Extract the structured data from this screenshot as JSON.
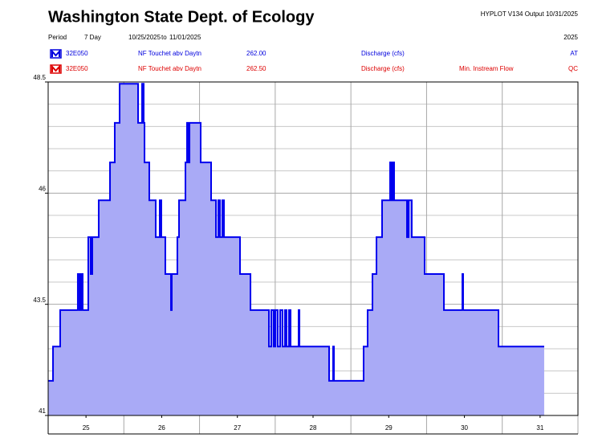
{
  "chart_data": {
    "type": "line",
    "title": "Washington State Dept. of Ecology",
    "program": "HYPLOT V134  Output 10/31/2025",
    "period_label": "Period",
    "period_value": "7 Day",
    "date_start": "10/25/2025",
    "date_sep": "to",
    "date_end": "11/01/2025",
    "year": "2025",
    "legend": [
      {
        "station": "32E050",
        "site": "NF Touchet abv Daytn",
        "gage": "262.00",
        "parameter": "Discharge (cfs)",
        "code": "AT",
        "color": "#0000dd"
      },
      {
        "station": "32E050",
        "site": "NF Touchet abv Daytn",
        "gage": "262.50",
        "parameter": "Discharge (cfs)",
        "extra": "Min. Instream Flow",
        "code": "QC",
        "color": "#dd0000"
      }
    ],
    "xlim": [
      25,
      32
    ],
    "xticks": [
      {
        "value": 25.5,
        "label": "25"
      },
      {
        "value": 26.5,
        "label": "26"
      },
      {
        "value": 27.5,
        "label": "27"
      },
      {
        "value": 28.5,
        "label": "28"
      },
      {
        "value": 29.5,
        "label": "29"
      },
      {
        "value": 30.5,
        "label": "30"
      },
      {
        "value": 31.5,
        "label": "31"
      }
    ],
    "xgrid": [
      25,
      26,
      27,
      28,
      29,
      30,
      31,
      32
    ],
    "ylim": [
      41,
      48.5
    ],
    "yticks": [
      41,
      43.5,
      46,
      48.5
    ],
    "yminor": [
      41.5,
      42,
      42.5,
      43,
      44,
      44.5,
      45,
      45.5,
      46.5,
      47,
      47.5,
      48
    ],
    "grid": true,
    "series": [
      {
        "color": "#0000ee",
        "fill": "#a9aaf6",
        "x": [
          25.0,
          25.064,
          25.064,
          25.159,
          25.159,
          25.392,
          25.392,
          25.414,
          25.414,
          25.435,
          25.435,
          25.456,
          25.456,
          25.53,
          25.53,
          25.562,
          25.562,
          25.583,
          25.583,
          25.668,
          25.668,
          25.817,
          25.817,
          25.88,
          25.88,
          25.944,
          25.944,
          26.188,
          26.188,
          26.241,
          26.241,
          26.262,
          26.262,
          26.273,
          26.273,
          26.336,
          26.336,
          26.421,
          26.421,
          26.474,
          26.474,
          26.495,
          26.495,
          26.548,
          26.548,
          26.623,
          26.623,
          26.633,
          26.633,
          26.707,
          26.707,
          26.729,
          26.729,
          26.814,
          26.814,
          26.835,
          26.835,
          26.856,
          26.856,
          26.867,
          26.867,
          27.015,
          27.015,
          27.153,
          27.153,
          27.217,
          27.217,
          27.248,
          27.248,
          27.27,
          27.27,
          27.301,
          27.301,
          27.323,
          27.323,
          27.535,
          27.535,
          27.673,
          27.673,
          27.917,
          27.917,
          27.948,
          27.948,
          27.98,
          27.98,
          28.001,
          28.001,
          28.033,
          28.033,
          28.065,
          28.065,
          28.097,
          28.097,
          28.129,
          28.129,
          28.15,
          28.15,
          28.182,
          28.182,
          28.203,
          28.203,
          28.309,
          28.309,
          28.32,
          28.32,
          28.712,
          28.712,
          28.765,
          28.765,
          28.776,
          28.776,
          29.168,
          29.168,
          29.221,
          29.221,
          29.285,
          29.285,
          29.338,
          29.338,
          29.412,
          29.412,
          29.518,
          29.518,
          29.539,
          29.539,
          29.56,
          29.56,
          29.571,
          29.571,
          29.741,
          29.741,
          29.762,
          29.762,
          29.804,
          29.804,
          29.974,
          29.974,
          30.229,
          30.229,
          30.473,
          30.473,
          30.483,
          30.483,
          30.95,
          30.95,
          31.554
        ],
        "values": [
          41.78,
          41.78,
          42.55,
          42.55,
          43.37,
          43.37,
          44.18,
          44.18,
          43.37,
          43.37,
          44.18,
          44.18,
          43.37,
          43.37,
          45.01,
          45.01,
          44.18,
          44.18,
          45.01,
          45.01,
          45.84,
          45.84,
          46.69,
          46.69,
          47.58,
          47.58,
          48.46,
          48.46,
          47.58,
          47.58,
          48.46,
          48.46,
          47.58,
          47.58,
          46.69,
          46.69,
          45.84,
          45.84,
          45.01,
          45.01,
          45.84,
          45.84,
          45.01,
          45.01,
          44.18,
          44.18,
          43.37,
          43.37,
          44.18,
          44.18,
          45.01,
          45.01,
          45.84,
          45.84,
          46.69,
          46.69,
          47.58,
          47.58,
          46.69,
          46.69,
          47.58,
          47.58,
          46.69,
          46.69,
          45.84,
          45.84,
          45.01,
          45.01,
          45.84,
          45.84,
          45.01,
          45.01,
          45.84,
          45.84,
          45.01,
          45.01,
          44.18,
          44.18,
          43.37,
          43.37,
          42.55,
          42.55,
          43.37,
          43.37,
          42.55,
          42.55,
          43.37,
          43.37,
          42.55,
          42.55,
          43.37,
          43.37,
          42.55,
          42.55,
          43.37,
          43.37,
          42.55,
          42.55,
          43.37,
          43.37,
          42.55,
          42.55,
          43.37,
          43.37,
          42.55,
          42.55,
          41.78,
          41.78,
          42.55,
          42.55,
          41.78,
          41.78,
          42.55,
          42.55,
          43.37,
          43.37,
          44.18,
          44.18,
          45.01,
          45.01,
          45.84,
          45.84,
          46.69,
          46.69,
          45.84,
          45.84,
          46.69,
          46.69,
          45.84,
          45.84,
          45.01,
          45.01,
          45.84,
          45.84,
          45.01,
          45.01,
          44.18,
          44.18,
          43.37,
          43.37,
          44.18,
          44.18,
          43.37,
          43.37,
          42.55,
          42.55
        ]
      }
    ]
  }
}
